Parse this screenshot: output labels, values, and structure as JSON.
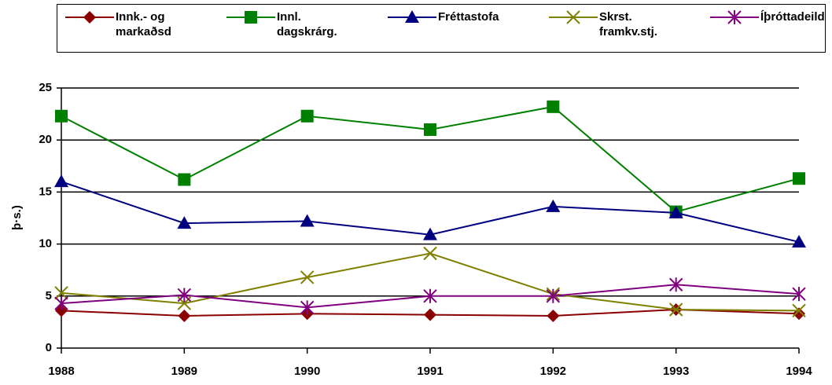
{
  "chart_data": {
    "type": "line",
    "y_label": "þ·s.)",
    "categories": [
      "1988",
      "1989",
      "1990",
      "1991",
      "1992",
      "1993",
      "1994"
    ],
    "series": [
      {
        "name": "Innk.- og markaðsd",
        "color": "#8b0000",
        "marker": "diamond",
        "values": [
          3.6,
          3.1,
          3.3,
          3.2,
          3.1,
          3.7,
          3.3
        ]
      },
      {
        "name": "Innl. dagskrárg.",
        "color": "#008000",
        "marker": "square",
        "values": [
          22.3,
          16.2,
          22.3,
          21.0,
          23.2,
          13.1,
          16.3
        ]
      },
      {
        "name": "Fréttastofa",
        "color": "#000080",
        "marker": "triangle",
        "values": [
          16.0,
          12.0,
          12.2,
          10.9,
          13.6,
          13.0,
          10.2
        ]
      },
      {
        "name": "Skrst. framkv.stj.",
        "color": "#808000",
        "marker": "x",
        "values": [
          5.3,
          4.3,
          6.8,
          9.1,
          5.2,
          3.7,
          3.6
        ]
      },
      {
        "name": "Íþróttadeild",
        "color": "#800080",
        "marker": "star",
        "values": [
          4.3,
          5.1,
          3.9,
          5.0,
          5.0,
          6.1,
          5.2
        ]
      }
    ],
    "ylim": [
      0,
      25
    ],
    "yticks": [
      0,
      5,
      10,
      15,
      20,
      25
    ],
    "grid": true,
    "legend": "top"
  }
}
